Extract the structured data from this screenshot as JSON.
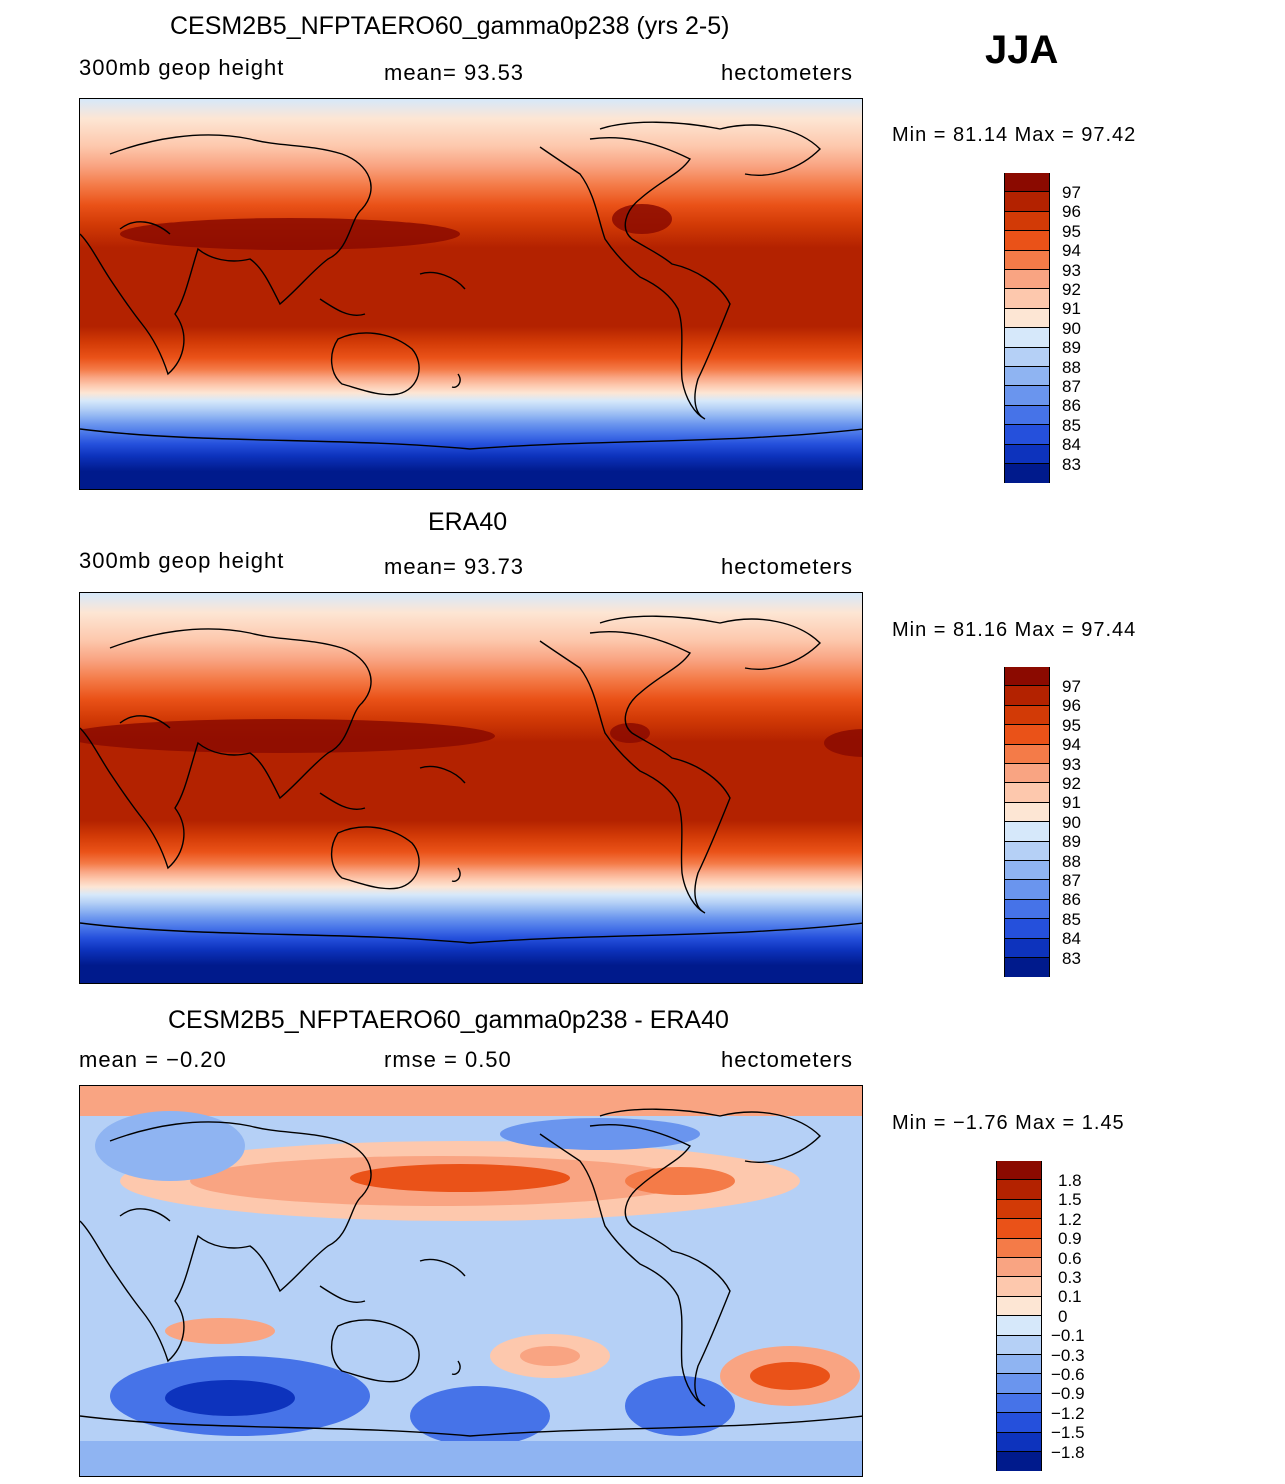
{
  "season": "JJA",
  "panels": [
    {
      "title": "CESM2B5_NFPTAERO60_gamma0p238 (yrs 2-5)",
      "left_label": "300mb  geop  height",
      "mid_label": "mean=   93.53",
      "units": "hectometers",
      "minmax": "Min  =   81.14  Max  =   97.42",
      "colorbar": {
        "labels": [
          "97",
          "96",
          "95",
          "94",
          "93",
          "92",
          "91",
          "90",
          "89",
          "88",
          "87",
          "86",
          "85",
          "84",
          "83"
        ],
        "colors": [
          "#8b0a00",
          "#b32200",
          "#d23a06",
          "#ea5218",
          "#f47b48",
          "#f9a482",
          "#fdc8ad",
          "#fde6d4",
          "#d6e8fa",
          "#b5d0f6",
          "#8fb4f2",
          "#6a95ee",
          "#4673e8",
          "#2550dc",
          "#0d33bd",
          "#001a8c"
        ]
      }
    },
    {
      "title": "ERA40",
      "left_label": "300mb  geop  height",
      "mid_label": "mean=   93.73",
      "units": "hectometers",
      "minmax": "Min  =   81.16  Max  =   97.44",
      "colorbar": {
        "labels": [
          "97",
          "96",
          "95",
          "94",
          "93",
          "92",
          "91",
          "90",
          "89",
          "88",
          "87",
          "86",
          "85",
          "84",
          "83"
        ],
        "colors": [
          "#8b0a00",
          "#b32200",
          "#d23a06",
          "#ea5218",
          "#f47b48",
          "#f9a482",
          "#fdc8ad",
          "#fde6d4",
          "#d6e8fa",
          "#b5d0f6",
          "#8fb4f2",
          "#6a95ee",
          "#4673e8",
          "#2550dc",
          "#0d33bd",
          "#001a8c"
        ]
      }
    },
    {
      "title": "CESM2B5_NFPTAERO60_gamma0p238 - ERA40",
      "left_label": "mean  =   −0.20",
      "mid_label": "rmse  =     0.50",
      "units": "hectometers",
      "minmax": "Min  =   −1.76  Max  =     1.45",
      "colorbar": {
        "labels": [
          "1.8",
          "1.5",
          "1.2",
          "0.9",
          "0.6",
          "0.3",
          "0.1",
          "0",
          "−0.1",
          "−0.3",
          "−0.6",
          "−0.9",
          "−1.2",
          "−1.5",
          "−1.8"
        ],
        "colors": [
          "#8b0a00",
          "#b32200",
          "#d23a06",
          "#ea5218",
          "#f47b48",
          "#f9a482",
          "#fdc8ad",
          "#fde6d4",
          "#d6e8fa",
          "#b5d0f6",
          "#8fb4f2",
          "#6a95ee",
          "#4673e8",
          "#2550dc",
          "#0d33bd",
          "#001a8c"
        ]
      }
    }
  ]
}
